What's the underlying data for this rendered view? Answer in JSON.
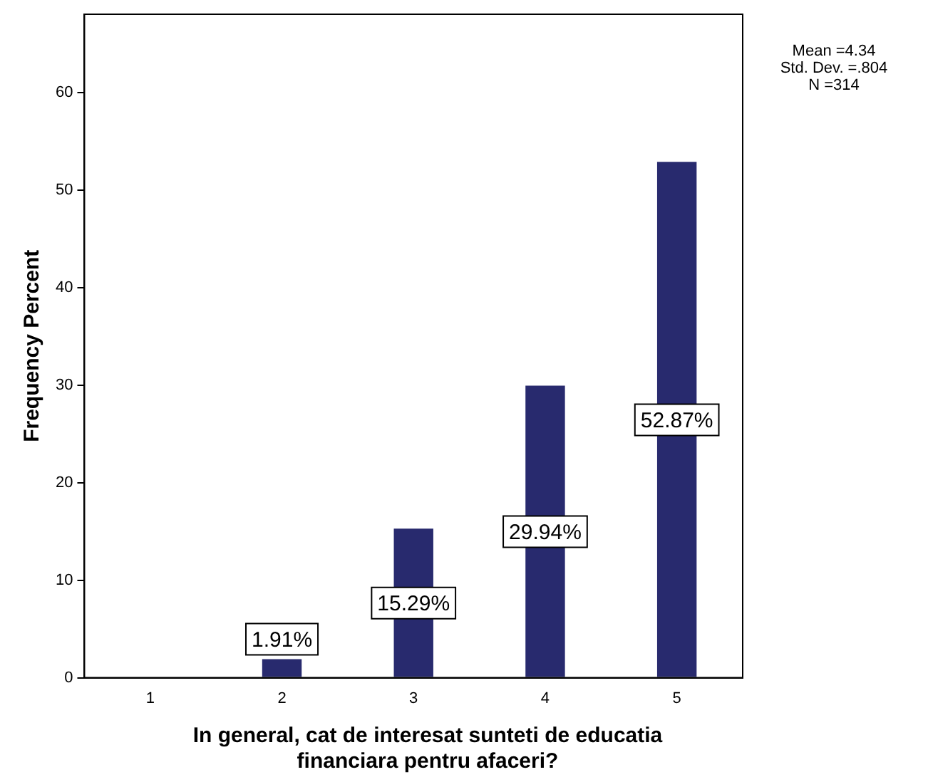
{
  "chart_data": {
    "type": "bar",
    "xlabel": "In general, cat de interesat sunteti de educatia financiara pentru afaceri?",
    "ylabel": "Frequency Percent",
    "categories": [
      "1",
      "2",
      "3",
      "4",
      "5"
    ],
    "values": [
      0,
      1.91,
      15.29,
      29.94,
      52.87
    ],
    "value_labels": [
      null,
      "1.91%",
      "15.29%",
      "29.94%",
      "52.87%"
    ],
    "color": "#282a6e",
    "ylim": [
      0,
      68
    ],
    "yticks": [
      0,
      10,
      20,
      30,
      40,
      50,
      60
    ],
    "grid": false,
    "legend": false,
    "annotations": [
      "Mean =4.34",
      "Std. Dev. =.804",
      "N =314"
    ]
  }
}
